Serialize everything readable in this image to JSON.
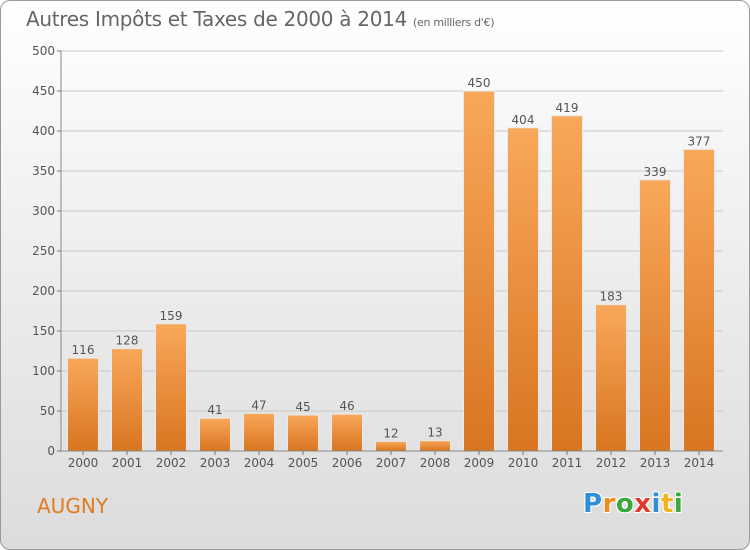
{
  "title": "Autres Impôts et Taxes de 2000 à 2014",
  "unit_note": "(en milliers d'€)",
  "town": "AUGNY",
  "logo": {
    "letters": [
      "P",
      "r",
      "o",
      "x",
      "i",
      "t",
      "i"
    ],
    "colors": [
      "#2f8fd6",
      "#f08c1e",
      "#3aa93a",
      "#e03a2a",
      "#2f8fd6",
      "#f0b41e",
      "#3aa93a"
    ]
  },
  "colors": {
    "bar_light": "#f8a85a",
    "bar_dark": "#d97520",
    "grid": "#c8c8c8",
    "tick_text": "#555555",
    "accent": "#e07b1e"
  },
  "chart_data": {
    "type": "bar",
    "categories": [
      "2000",
      "2001",
      "2002",
      "2003",
      "2004",
      "2005",
      "2006",
      "2007",
      "2008",
      "2009",
      "2010",
      "2011",
      "2012",
      "2013",
      "2014"
    ],
    "values": [
      116,
      128,
      159,
      41,
      47,
      45,
      46,
      12,
      13,
      450,
      404,
      419,
      183,
      339,
      377
    ],
    "title": "Autres Impôts et Taxes de 2000 à 2014",
    "xlabel": "",
    "ylabel": "",
    "ylim": [
      0,
      500
    ],
    "yticks": [
      0,
      50,
      100,
      150,
      200,
      250,
      300,
      350,
      400,
      450,
      500
    ],
    "grid": true
  }
}
